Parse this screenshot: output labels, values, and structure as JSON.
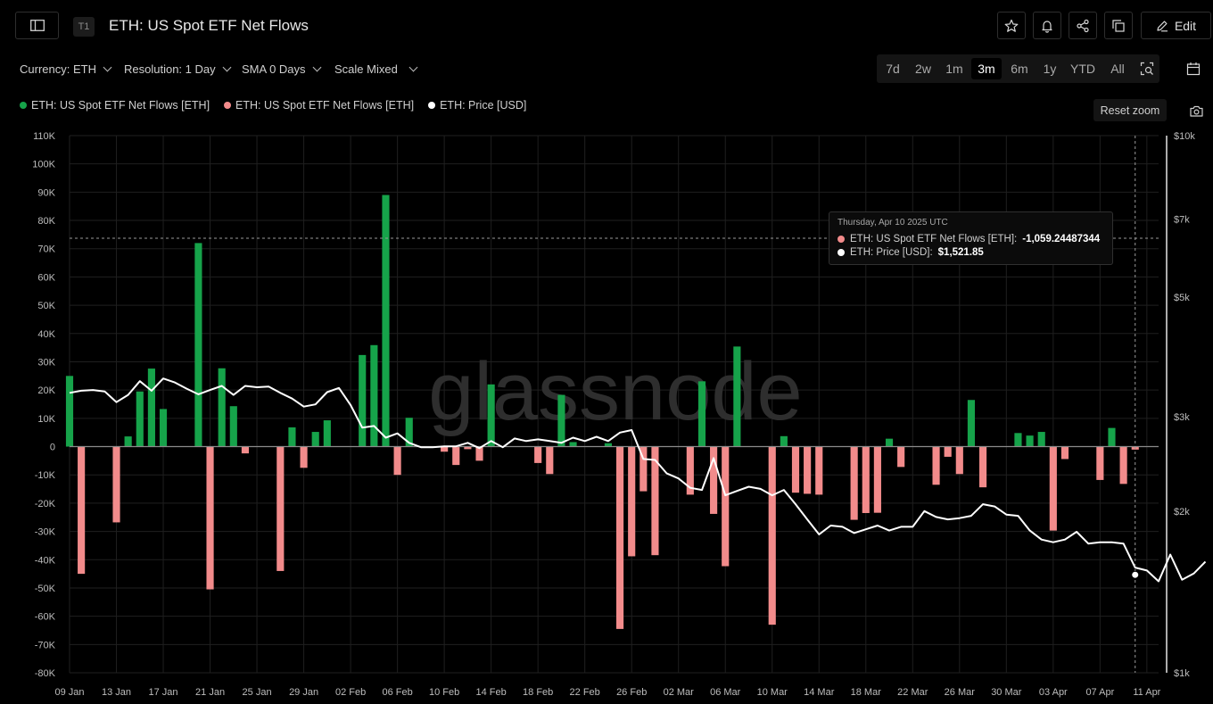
{
  "header": {
    "title": "ETH: US Spot ETF Net Flows",
    "tier_badge": "T1",
    "edit_label": "Edit"
  },
  "controls": {
    "currency": "Currency: ETH",
    "resolution": "Resolution: 1 Day",
    "sma": "SMA 0 Days",
    "scale": "Scale Mixed"
  },
  "ranges": [
    "7d",
    "2w",
    "1m",
    "3m",
    "6m",
    "1y",
    "YTD",
    "All"
  ],
  "active_range": "3m",
  "legend": [
    {
      "label": "ETH: US Spot ETF Net Flows [ETH]",
      "color": "#16a34a"
    },
    {
      "label": "ETH: US Spot ETF Net Flows [ETH]",
      "color": "#f28b8b"
    },
    {
      "label": "ETH: Price [USD]",
      "color": "#ffffff"
    }
  ],
  "reset_zoom_label": "Reset zoom",
  "watermark": "glassnode",
  "tooltip": {
    "date": "Thursday, Apr 10 2025 UTC",
    "flow_label": "ETH: US Spot ETF Net Flows [ETH]:",
    "flow_value": "-1,059.24487344",
    "price_label": "ETH: Price [USD]:",
    "price_value": "$1,521.85"
  },
  "chart_data": {
    "type": "bar",
    "x_tick_labels": [
      "09 Jan",
      "13 Jan",
      "17 Jan",
      "21 Jan",
      "25 Jan",
      "29 Jan",
      "02 Feb",
      "06 Feb",
      "10 Feb",
      "14 Feb",
      "18 Feb",
      "22 Feb",
      "26 Feb",
      "02 Mar",
      "06 Mar",
      "10 Mar",
      "14 Mar",
      "18 Mar",
      "22 Mar",
      "26 Mar",
      "30 Mar",
      "03 Apr",
      "07 Apr",
      "11 Apr"
    ],
    "x_start": "2025-01-09",
    "x_end": "2025-04-12",
    "left_axis": {
      "ylim": [
        -80000,
        110000
      ],
      "tick_labels": [
        "110K",
        "100K",
        "90K",
        "80K",
        "70K",
        "60K",
        "50K",
        "40K",
        "30K",
        "20K",
        "10K",
        "0",
        "-10K",
        "-20K",
        "-30K",
        "-40K",
        "-50K",
        "-60K",
        "-70K",
        "-80K"
      ]
    },
    "right_axis": {
      "scale": "log",
      "tick_values": [
        10000,
        7000,
        5000,
        3000,
        2000,
        1000
      ],
      "tick_labels": [
        "$10k",
        "$7k",
        "$5k",
        "$3k",
        "$2k",
        "$1k"
      ]
    },
    "grid": true,
    "legend_position": "top-left",
    "series": [
      {
        "name": "ETH: US Spot ETF Net Flows [ETH]",
        "type": "bar",
        "axis": "left",
        "points": [
          {
            "date": "2025-01-09",
            "value": 25000
          },
          {
            "date": "2025-01-10",
            "value": -45000
          },
          {
            "date": "2025-01-13",
            "value": -26800
          },
          {
            "date": "2025-01-14",
            "value": 3600
          },
          {
            "date": "2025-01-15",
            "value": 19500
          },
          {
            "date": "2025-01-16",
            "value": 27600
          },
          {
            "date": "2025-01-17",
            "value": 13300
          },
          {
            "date": "2025-01-20",
            "value": 72000
          },
          {
            "date": "2025-01-21",
            "value": -50500
          },
          {
            "date": "2025-01-22",
            "value": 27700
          },
          {
            "date": "2025-01-23",
            "value": 14300
          },
          {
            "date": "2025-01-24",
            "value": -2400
          },
          {
            "date": "2025-01-27",
            "value": -44000
          },
          {
            "date": "2025-01-28",
            "value": 6800
          },
          {
            "date": "2025-01-29",
            "value": -7500
          },
          {
            "date": "2025-01-30",
            "value": 5200
          },
          {
            "date": "2025-01-31",
            "value": 9300
          },
          {
            "date": "2025-02-03",
            "value": 32400
          },
          {
            "date": "2025-02-04",
            "value": 35900
          },
          {
            "date": "2025-02-05",
            "value": 89000
          },
          {
            "date": "2025-02-06",
            "value": -10000
          },
          {
            "date": "2025-02-07",
            "value": 10200
          },
          {
            "date": "2025-02-10",
            "value": -1800
          },
          {
            "date": "2025-02-11",
            "value": -6500
          },
          {
            "date": "2025-02-12",
            "value": -900
          },
          {
            "date": "2025-02-13",
            "value": -5000
          },
          {
            "date": "2025-02-14",
            "value": 22000
          },
          {
            "date": "2025-02-18",
            "value": -5800
          },
          {
            "date": "2025-02-19",
            "value": -9700
          },
          {
            "date": "2025-02-20",
            "value": 18300
          },
          {
            "date": "2025-02-21",
            "value": 1600
          },
          {
            "date": "2025-02-24",
            "value": 1200
          },
          {
            "date": "2025-02-25",
            "value": -64500
          },
          {
            "date": "2025-02-26",
            "value": -38800
          },
          {
            "date": "2025-02-27",
            "value": -15800
          },
          {
            "date": "2025-02-28",
            "value": -38400
          },
          {
            "date": "2025-03-03",
            "value": -17000
          },
          {
            "date": "2025-03-04",
            "value": 23100
          },
          {
            "date": "2025-03-05",
            "value": -23800
          },
          {
            "date": "2025-03-06",
            "value": -42300
          },
          {
            "date": "2025-03-07",
            "value": 35400
          },
          {
            "date": "2025-03-10",
            "value": -63000
          },
          {
            "date": "2025-03-11",
            "value": 3700
          },
          {
            "date": "2025-03-12",
            "value": -16300
          },
          {
            "date": "2025-03-13",
            "value": -16700
          },
          {
            "date": "2025-03-14",
            "value": -17000
          },
          {
            "date": "2025-03-17",
            "value": -25900
          },
          {
            "date": "2025-03-18",
            "value": -23500
          },
          {
            "date": "2025-03-19",
            "value": -23400
          },
          {
            "date": "2025-03-20",
            "value": 2800
          },
          {
            "date": "2025-03-21",
            "value": -7200
          },
          {
            "date": "2025-03-24",
            "value": -13500
          },
          {
            "date": "2025-03-25",
            "value": -3600
          },
          {
            "date": "2025-03-26",
            "value": -9700
          },
          {
            "date": "2025-03-27",
            "value": 16500
          },
          {
            "date": "2025-03-28",
            "value": -14400
          },
          {
            "date": "2025-03-31",
            "value": 4800
          },
          {
            "date": "2025-04-01",
            "value": 3900
          },
          {
            "date": "2025-04-02",
            "value": 5200
          },
          {
            "date": "2025-04-03",
            "value": -29700
          },
          {
            "date": "2025-04-04",
            "value": -4400
          },
          {
            "date": "2025-04-07",
            "value": -11800
          },
          {
            "date": "2025-04-08",
            "value": 6600
          },
          {
            "date": "2025-04-09",
            "value": -13200
          },
          {
            "date": "2025-04-10",
            "value": -1059.24487344
          }
        ]
      },
      {
        "name": "ETH: Price [USD]",
        "type": "line",
        "axis": "right",
        "points": [
          {
            "date": "2025-01-09",
            "value": 3320
          },
          {
            "date": "2025-01-10",
            "value": 3350
          },
          {
            "date": "2025-01-11",
            "value": 3360
          },
          {
            "date": "2025-01-12",
            "value": 3340
          },
          {
            "date": "2025-01-13",
            "value": 3190
          },
          {
            "date": "2025-01-14",
            "value": 3290
          },
          {
            "date": "2025-01-15",
            "value": 3490
          },
          {
            "date": "2025-01-16",
            "value": 3350
          },
          {
            "date": "2025-01-17",
            "value": 3530
          },
          {
            "date": "2025-01-18",
            "value": 3470
          },
          {
            "date": "2025-01-19",
            "value": 3380
          },
          {
            "date": "2025-01-20",
            "value": 3300
          },
          {
            "date": "2025-01-21",
            "value": 3360
          },
          {
            "date": "2025-01-22",
            "value": 3420
          },
          {
            "date": "2025-01-23",
            "value": 3290
          },
          {
            "date": "2025-01-24",
            "value": 3420
          },
          {
            "date": "2025-01-25",
            "value": 3400
          },
          {
            "date": "2025-01-26",
            "value": 3410
          },
          {
            "date": "2025-01-27",
            "value": 3320
          },
          {
            "date": "2025-01-28",
            "value": 3240
          },
          {
            "date": "2025-01-29",
            "value": 3130
          },
          {
            "date": "2025-01-30",
            "value": 3160
          },
          {
            "date": "2025-01-31",
            "value": 3330
          },
          {
            "date": "2025-02-01",
            "value": 3390
          },
          {
            "date": "2025-02-02",
            "value": 3150
          },
          {
            "date": "2025-02-03",
            "value": 2860
          },
          {
            "date": "2025-02-04",
            "value": 2880
          },
          {
            "date": "2025-02-05",
            "value": 2740
          },
          {
            "date": "2025-02-06",
            "value": 2790
          },
          {
            "date": "2025-02-07",
            "value": 2680
          },
          {
            "date": "2025-02-08",
            "value": 2630
          },
          {
            "date": "2025-02-09",
            "value": 2630
          },
          {
            "date": "2025-02-10",
            "value": 2640
          },
          {
            "date": "2025-02-11",
            "value": 2640
          },
          {
            "date": "2025-02-12",
            "value": 2680
          },
          {
            "date": "2025-02-13",
            "value": 2620
          },
          {
            "date": "2025-02-14",
            "value": 2700
          },
          {
            "date": "2025-02-15",
            "value": 2630
          },
          {
            "date": "2025-02-16",
            "value": 2730
          },
          {
            "date": "2025-02-17",
            "value": 2700
          },
          {
            "date": "2025-02-18",
            "value": 2720
          },
          {
            "date": "2025-02-19",
            "value": 2700
          },
          {
            "date": "2025-02-20",
            "value": 2680
          },
          {
            "date": "2025-02-21",
            "value": 2740
          },
          {
            "date": "2025-02-22",
            "value": 2700
          },
          {
            "date": "2025-02-23",
            "value": 2750
          },
          {
            "date": "2025-02-24",
            "value": 2700
          },
          {
            "date": "2025-02-25",
            "value": 2800
          },
          {
            "date": "2025-02-26",
            "value": 2830
          },
          {
            "date": "2025-02-27",
            "value": 2500
          },
          {
            "date": "2025-02-28",
            "value": 2490
          },
          {
            "date": "2025-03-01",
            "value": 2350
          },
          {
            "date": "2025-03-02",
            "value": 2300
          },
          {
            "date": "2025-03-03",
            "value": 2210
          },
          {
            "date": "2025-03-04",
            "value": 2190
          },
          {
            "date": "2025-03-05",
            "value": 2510
          },
          {
            "date": "2025-03-06",
            "value": 2140
          },
          {
            "date": "2025-03-07",
            "value": 2180
          },
          {
            "date": "2025-03-08",
            "value": 2220
          },
          {
            "date": "2025-03-09",
            "value": 2200
          },
          {
            "date": "2025-03-10",
            "value": 2140
          },
          {
            "date": "2025-03-11",
            "value": 2190
          },
          {
            "date": "2025-03-12",
            "value": 2060
          },
          {
            "date": "2025-03-13",
            "value": 1930
          },
          {
            "date": "2025-03-14",
            "value": 1810
          },
          {
            "date": "2025-03-15",
            "value": 1880
          },
          {
            "date": "2025-03-16",
            "value": 1870
          },
          {
            "date": "2025-03-17",
            "value": 1820
          },
          {
            "date": "2025-03-18",
            "value": 1850
          },
          {
            "date": "2025-03-19",
            "value": 1880
          },
          {
            "date": "2025-03-20",
            "value": 1840
          },
          {
            "date": "2025-03-21",
            "value": 1870
          },
          {
            "date": "2025-03-22",
            "value": 1870
          },
          {
            "date": "2025-03-23",
            "value": 2000
          },
          {
            "date": "2025-03-24",
            "value": 1950
          },
          {
            "date": "2025-03-25",
            "value": 1930
          },
          {
            "date": "2025-03-26",
            "value": 1940
          },
          {
            "date": "2025-03-27",
            "value": 1960
          },
          {
            "date": "2025-03-28",
            "value": 2060
          },
          {
            "date": "2025-03-29",
            "value": 2040
          },
          {
            "date": "2025-03-30",
            "value": 1970
          },
          {
            "date": "2025-03-31",
            "value": 1960
          },
          {
            "date": "2025-04-01",
            "value": 1840
          },
          {
            "date": "2025-04-02",
            "value": 1770
          },
          {
            "date": "2025-04-03",
            "value": 1750
          },
          {
            "date": "2025-04-04",
            "value": 1770
          },
          {
            "date": "2025-04-05",
            "value": 1830
          },
          {
            "date": "2025-04-06",
            "value": 1740
          },
          {
            "date": "2025-04-07",
            "value": 1750
          },
          {
            "date": "2025-04-08",
            "value": 1750
          },
          {
            "date": "2025-04-09",
            "value": 1740
          },
          {
            "date": "2025-04-10",
            "value": 1570
          },
          {
            "date": "2025-04-11",
            "value": 1550
          },
          {
            "date": "2025-04-12",
            "value": 1480
          },
          {
            "date": "2025-04-13",
            "value": 1660
          },
          {
            "date": "2025-04-14",
            "value": 1490
          },
          {
            "date": "2025-04-15",
            "value": 1530
          },
          {
            "date": "2025-04-16",
            "value": 1610
          }
        ]
      }
    ],
    "hover_date": "2025-04-10",
    "hover_price": 1521.85
  },
  "colors": {
    "positive": "#16a34a",
    "negative": "#f28b8b",
    "price": "#ffffff",
    "grid": "#1f1f1f"
  }
}
